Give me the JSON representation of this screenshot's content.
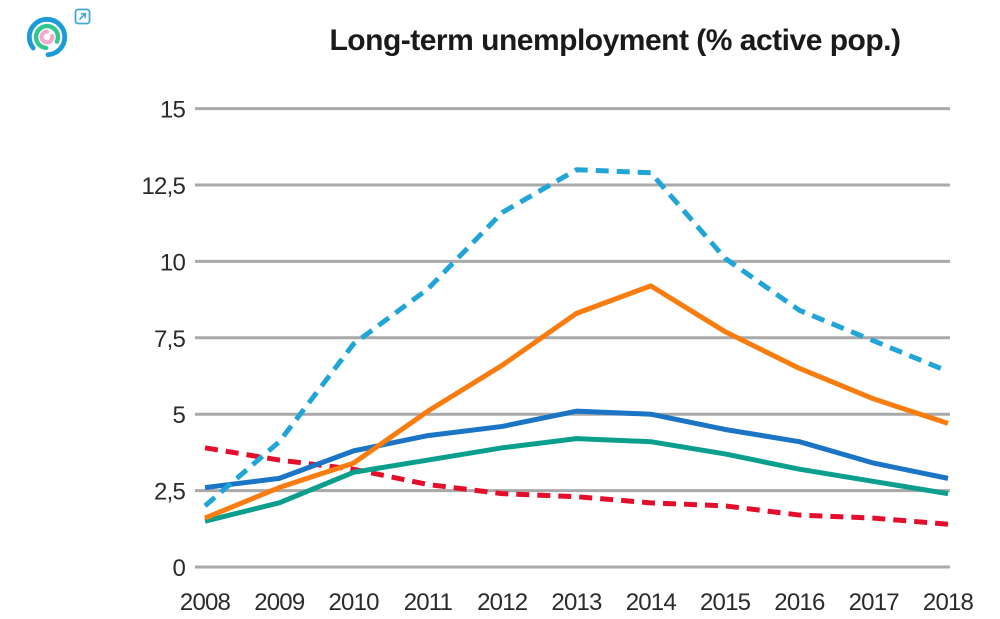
{
  "header": {
    "title": "Long-term unemployment (% active pop.)"
  },
  "logo": {
    "description": "concentric-arcs-logo-with-external-link",
    "colors": {
      "outer_arc": "#1b9cd8",
      "middle_arc": "#2fc98f",
      "inner_arc": "#f5a8cb",
      "external_link": "#3fa9dc"
    }
  },
  "chart_data": {
    "type": "line",
    "title": "Long-term unemployment (% active pop.)",
    "xlabel": "",
    "ylabel": "",
    "x": [
      2008,
      2009,
      2010,
      2011,
      2012,
      2013,
      2014,
      2015,
      2016,
      2017,
      2018
    ],
    "x_tick_labels": [
      "2008",
      "2009",
      "2010",
      "2011",
      "2012",
      "2013",
      "2014",
      "2015",
      "2016",
      "2017",
      "2018"
    ],
    "y_tick_labels": [
      "15",
      "12,5",
      "10",
      "7,5",
      "5",
      "2,5",
      "0"
    ],
    "y_tick_values": [
      15,
      12.5,
      10,
      7.5,
      5,
      2.5,
      0
    ],
    "ylim": [
      0,
      15
    ],
    "grid": true,
    "legend": false,
    "series": [
      {
        "name": "dashed-cyan-line",
        "color": "#21a5d6",
        "dashed": true,
        "values": [
          2.0,
          4.1,
          7.3,
          9.1,
          11.6,
          13.0,
          12.9,
          10.1,
          8.4,
          7.4,
          6.4
        ]
      },
      {
        "name": "orange-line",
        "color": "#f87d0e",
        "dashed": false,
        "values": [
          1.6,
          2.6,
          3.4,
          5.1,
          6.6,
          8.3,
          9.2,
          7.7,
          6.5,
          5.5,
          4.7
        ]
      },
      {
        "name": "blue-line",
        "color": "#1b74c4",
        "dashed": false,
        "values": [
          2.6,
          2.9,
          3.8,
          4.3,
          4.6,
          5.1,
          5.0,
          4.5,
          4.1,
          3.4,
          2.9
        ]
      },
      {
        "name": "teal-line",
        "color": "#0a9f8d",
        "dashed": false,
        "values": [
          1.5,
          2.1,
          3.1,
          3.5,
          3.9,
          4.2,
          4.1,
          3.7,
          3.2,
          2.8,
          2.4
        ]
      },
      {
        "name": "dashed-red-line",
        "color": "#e40e2c",
        "dashed": true,
        "values": [
          3.9,
          3.5,
          3.2,
          2.7,
          2.4,
          2.3,
          2.1,
          2.0,
          1.7,
          1.6,
          1.4
        ]
      }
    ],
    "grid_color": "#a9a9a9"
  }
}
